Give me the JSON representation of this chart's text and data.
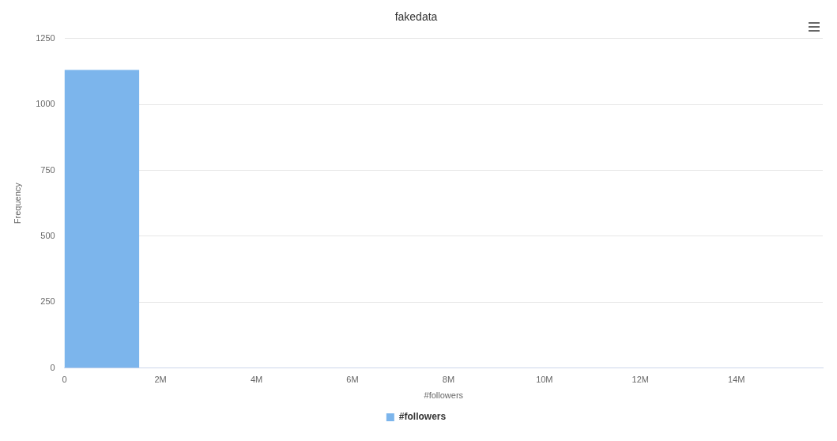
{
  "chart_data": {
    "type": "histogram",
    "title": "fakedata",
    "xlabel": "#followers",
    "ylabel": "Frequency",
    "bins": [
      0,
      1550000
    ],
    "series": [
      {
        "name": "#followers",
        "color": "#7cb5ec",
        "values": [
          1130
        ]
      }
    ],
    "xlim": [
      0,
      15800000
    ],
    "xticks": [
      0,
      {
        "value": 2000000,
        "label": "2M"
      },
      {
        "value": 4000000,
        "label": "4M"
      },
      {
        "value": 6000000,
        "label": "6M"
      },
      {
        "value": 8000000,
        "label": "8M"
      },
      {
        "value": 10000000,
        "label": "10M"
      },
      {
        "value": 12000000,
        "label": "12M"
      },
      {
        "value": 14000000,
        "label": "14M"
      }
    ],
    "ylim": [
      0,
      1250
    ],
    "yticks": [
      0,
      250,
      500,
      750,
      1000,
      1250
    ],
    "grid": "y",
    "legend": "bottom"
  }
}
